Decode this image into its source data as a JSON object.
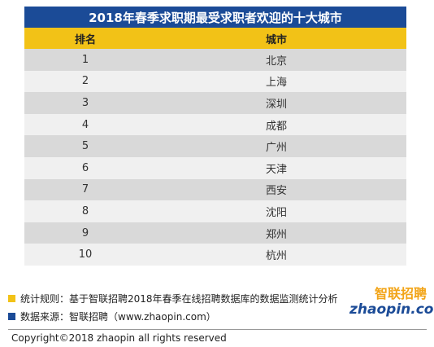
{
  "title": "2018年春季求职期最受求职者欢迎的十大城市",
  "table": {
    "headers": [
      "排名",
      "城市"
    ],
    "rows": [
      {
        "rank": "1",
        "city": "北京"
      },
      {
        "rank": "2",
        "city": "上海"
      },
      {
        "rank": "3",
        "city": "深圳"
      },
      {
        "rank": "4",
        "city": "成都"
      },
      {
        "rank": "5",
        "city": "广州"
      },
      {
        "rank": "6",
        "city": "天津"
      },
      {
        "rank": "7",
        "city": "西安"
      },
      {
        "rank": "8",
        "city": "沈阳"
      },
      {
        "rank": "9",
        "city": "郑州"
      },
      {
        "rank": "10",
        "city": "杭州"
      }
    ]
  },
  "notes": {
    "rule": "统计规则：基于智联招聘2018年春季在线招聘数据库的数据监测统计分析",
    "source": "数据来源：智联招聘（www.zhaopin.com）"
  },
  "logo": {
    "cn": "智联招聘",
    "en": "zhaopin.com"
  },
  "copyright": "Copyright©2018 zhaopin all rights reserved",
  "colors": {
    "title_bg": "#1b4b97",
    "header_bg": "#f2c217",
    "accent_yellow": "#f2c217",
    "accent_blue": "#1b4b97"
  }
}
